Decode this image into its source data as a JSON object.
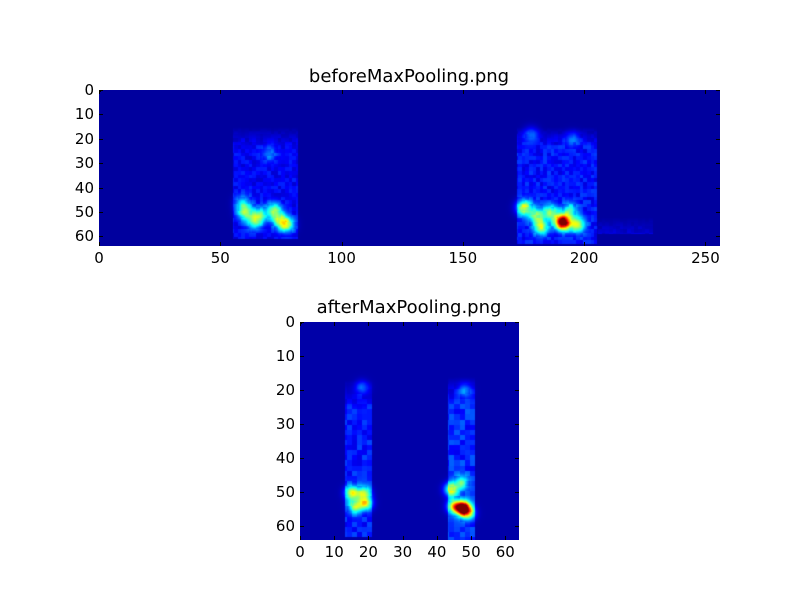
{
  "chart_data": [
    {
      "type": "heatmap",
      "title": "beforeMaxPooling.png",
      "colormap": "jet",
      "width": 256,
      "height": 64,
      "xlim": [
        0,
        256
      ],
      "ylim": [
        64,
        0
      ],
      "xticks": [
        "0",
        "50",
        "100",
        "150",
        "200",
        "250"
      ],
      "yticks": [
        "0",
        "10",
        "20",
        "30",
        "40",
        "50",
        "60"
      ],
      "background_value": 0.03,
      "regions": [
        {
          "x0": 55,
          "x1": 82,
          "y0": 15,
          "y1": 61,
          "value": 0.1
        },
        {
          "x0": 172,
          "x1": 205,
          "y0": 15,
          "y1": 63,
          "value": 0.12
        },
        {
          "x0": 205,
          "x1": 228,
          "y0": 52,
          "y1": 59,
          "value": 0.07
        }
      ],
      "peaks": [
        {
          "x": 60,
          "y": 50,
          "value": 0.42
        },
        {
          "x": 66,
          "y": 51,
          "value": 0.35
        },
        {
          "x": 72,
          "y": 49,
          "value": 0.4
        },
        {
          "x": 64,
          "y": 54,
          "value": 0.35
        },
        {
          "x": 77,
          "y": 55,
          "value": 0.5
        },
        {
          "x": 74,
          "y": 53,
          "value": 0.35
        },
        {
          "x": 59,
          "y": 46,
          "value": 0.25
        },
        {
          "x": 70,
          "y": 26,
          "value": 0.15
        },
        {
          "x": 178,
          "y": 18,
          "value": 0.18
        },
        {
          "x": 195,
          "y": 20,
          "value": 0.15
        },
        {
          "x": 175,
          "y": 48,
          "value": 0.5
        },
        {
          "x": 182,
          "y": 56,
          "value": 0.5
        },
        {
          "x": 186,
          "y": 50,
          "value": 0.4
        },
        {
          "x": 191,
          "y": 54,
          "value": 1.0
        },
        {
          "x": 197,
          "y": 55,
          "value": 0.5
        },
        {
          "x": 180,
          "y": 51,
          "value": 0.38
        },
        {
          "x": 194,
          "y": 49,
          "value": 0.3
        }
      ]
    },
    {
      "type": "heatmap",
      "title": "afterMaxPooling.png",
      "colormap": "jet",
      "width": 64,
      "height": 64,
      "xlim": [
        0,
        64
      ],
      "ylim": [
        64,
        0
      ],
      "xticks": [
        "0",
        "10",
        "20",
        "30",
        "40",
        "50",
        "60"
      ],
      "yticks": [
        "0",
        "10",
        "20",
        "30",
        "40",
        "50",
        "60"
      ],
      "background_value": 0.04,
      "regions": [
        {
          "x0": 13,
          "x1": 21,
          "y0": 17,
          "y1": 63,
          "value": 0.12
        },
        {
          "x0": 43,
          "x1": 51,
          "y0": 16,
          "y1": 64,
          "value": 0.14
        }
      ],
      "peaks": [
        {
          "x": 15,
          "y": 50,
          "value": 0.5
        },
        {
          "x": 18.5,
          "y": 50,
          "value": 0.42
        },
        {
          "x": 16,
          "y": 54,
          "value": 0.45
        },
        {
          "x": 19,
          "y": 53,
          "value": 0.5
        },
        {
          "x": 18,
          "y": 19,
          "value": 0.18
        },
        {
          "x": 44,
          "y": 49,
          "value": 0.5
        },
        {
          "x": 47,
          "y": 47,
          "value": 0.35
        },
        {
          "x": 45,
          "y": 54,
          "value": 0.6
        },
        {
          "x": 47.5,
          "y": 54.5,
          "value": 1.0
        },
        {
          "x": 49,
          "y": 56,
          "value": 0.45
        },
        {
          "x": 48,
          "y": 20,
          "value": 0.2
        }
      ]
    }
  ]
}
